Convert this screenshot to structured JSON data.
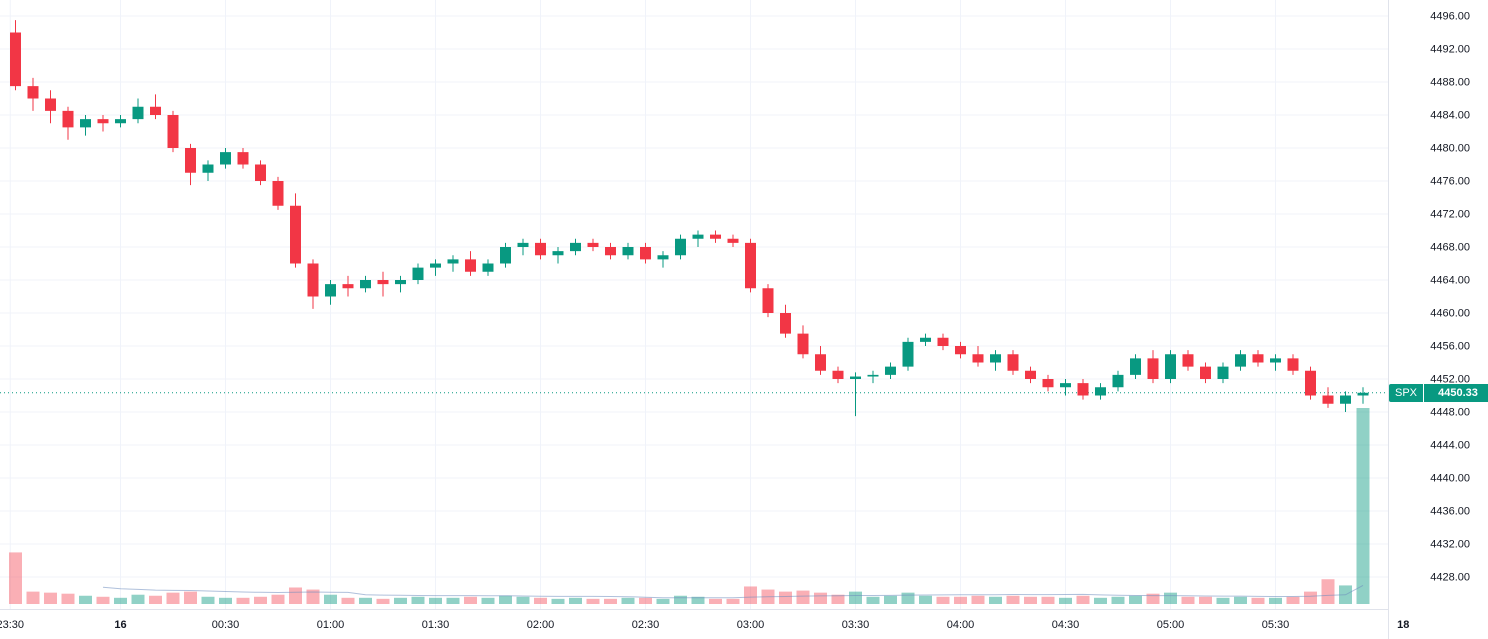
{
  "symbol": "SPX",
  "last_price": "4450.33",
  "badge": {
    "symbol": "SPX",
    "price": "4450.33"
  },
  "colors": {
    "up": "#089981",
    "down": "#f23645",
    "volume_up": "rgba(8,153,129,0.45)",
    "volume_down": "rgba(242,54,69,0.40)",
    "grid": "#f0f3fa",
    "axis_text": "#131722",
    "axis_border": "#e0e3eb",
    "price_line": "#089981",
    "volume_ma": "rgba(110,140,190,0.55)",
    "badge_bg": "#089981",
    "badge_text": "#ffffff",
    "background": "#ffffff"
  },
  "chart_data": {
    "type": "candlestick",
    "symbol": "SPX",
    "interval": "5m",
    "start_time": "23:30",
    "last_close": 4450.33,
    "ylim": [
      4428,
      4496
    ],
    "grid": true,
    "legend_position": "none",
    "price_axis_ticks": [
      "4496.00",
      "4492.00",
      "4488.00",
      "4484.00",
      "4480.00",
      "4476.00",
      "4472.00",
      "4468.00",
      "4464.00",
      "4460.00",
      "4456.00",
      "4452.00",
      "4448.00",
      "4444.00",
      "4440.00",
      "4436.00",
      "4432.00",
      "4428.00"
    ],
    "time_axis_ticks": [
      {
        "i": -0.3,
        "label": "23:30",
        "bold": false
      },
      {
        "i": 6,
        "label": "16",
        "bold": true
      },
      {
        "i": 12,
        "label": "00:30",
        "bold": false
      },
      {
        "i": 18,
        "label": "01:00",
        "bold": false
      },
      {
        "i": 24,
        "label": "01:30",
        "bold": false
      },
      {
        "i": 30,
        "label": "02:00",
        "bold": false
      },
      {
        "i": 36,
        "label": "02:30",
        "bold": false
      },
      {
        "i": 42,
        "label": "03:00",
        "bold": false
      },
      {
        "i": 48,
        "label": "03:30",
        "bold": false
      },
      {
        "i": 54,
        "label": "04:00",
        "bold": false
      },
      {
        "i": 60,
        "label": "04:30",
        "bold": false
      },
      {
        "i": 66,
        "label": "05:00",
        "bold": false
      },
      {
        "i": 72,
        "label": "05:30",
        "bold": false
      },
      {
        "i": 79.3,
        "label": "18",
        "bold": true
      }
    ],
    "volume_scale_max": 950,
    "candles_format": [
      "open",
      "high",
      "low",
      "close",
      "volume"
    ],
    "candles": [
      [
        4494.0,
        4495.5,
        4487.0,
        4487.5,
        250
      ],
      [
        4487.5,
        4488.5,
        4484.5,
        4486.0,
        60
      ],
      [
        4486.0,
        4487.0,
        4483.0,
        4484.5,
        55
      ],
      [
        4484.5,
        4485.0,
        4481.0,
        4482.5,
        50
      ],
      [
        4482.5,
        4484.0,
        4481.5,
        4483.5,
        40
      ],
      [
        4483.5,
        4484.0,
        4482.0,
        4483.0,
        35
      ],
      [
        4483.0,
        4484.0,
        4482.5,
        4483.5,
        30
      ],
      [
        4483.5,
        4486.0,
        4483.0,
        4485.0,
        45
      ],
      [
        4485.0,
        4486.5,
        4483.5,
        4484.0,
        40
      ],
      [
        4484.0,
        4484.5,
        4479.5,
        4480.0,
        55
      ],
      [
        4480.0,
        4480.5,
        4475.5,
        4477.0,
        60
      ],
      [
        4477.0,
        4478.5,
        4476.0,
        4478.0,
        35
      ],
      [
        4478.0,
        4480.0,
        4477.5,
        4479.5,
        30
      ],
      [
        4479.5,
        4480.0,
        4477.5,
        4478.0,
        30
      ],
      [
        4478.0,
        4478.5,
        4475.5,
        4476.0,
        35
      ],
      [
        4476.0,
        4476.5,
        4472.5,
        4473.0,
        45
      ],
      [
        4473.0,
        4474.5,
        4465.5,
        4466.0,
        80
      ],
      [
        4466.0,
        4466.5,
        4460.5,
        4462.0,
        70
      ],
      [
        4462.0,
        4464.0,
        4461.0,
        4463.5,
        45
      ],
      [
        4463.5,
        4464.5,
        4462.0,
        4463.0,
        30
      ],
      [
        4463.0,
        4464.5,
        4462.5,
        4464.0,
        30
      ],
      [
        4464.0,
        4465.0,
        4462.0,
        4463.5,
        25
      ],
      [
        4463.5,
        4464.5,
        4462.5,
        4464.0,
        30
      ],
      [
        4464.0,
        4466.0,
        4463.5,
        4465.5,
        35
      ],
      [
        4465.5,
        4466.5,
        4464.5,
        4466.0,
        30
      ],
      [
        4466.0,
        4467.0,
        4465.0,
        4466.5,
        30
      ],
      [
        4466.5,
        4467.5,
        4464.5,
        4465.0,
        35
      ],
      [
        4465.0,
        4466.5,
        4464.5,
        4466.0,
        30
      ],
      [
        4466.0,
        4468.5,
        4465.5,
        4468.0,
        40
      ],
      [
        4468.0,
        4469.0,
        4467.0,
        4468.5,
        35
      ],
      [
        4468.5,
        4469.0,
        4466.5,
        4467.0,
        30
      ],
      [
        4467.0,
        4468.0,
        4466.0,
        4467.5,
        25
      ],
      [
        4467.5,
        4469.0,
        4467.0,
        4468.5,
        30
      ],
      [
        4468.5,
        4469.0,
        4467.5,
        4468.0,
        25
      ],
      [
        4468.0,
        4468.5,
        4466.5,
        4467.0,
        25
      ],
      [
        4467.0,
        4468.5,
        4466.5,
        4468.0,
        30
      ],
      [
        4468.0,
        4468.5,
        4466.0,
        4466.5,
        30
      ],
      [
        4466.5,
        4467.5,
        4465.5,
        4467.0,
        25
      ],
      [
        4467.0,
        4469.5,
        4466.5,
        4469.0,
        40
      ],
      [
        4469.0,
        4470.0,
        4468.0,
        4469.5,
        35
      ],
      [
        4469.5,
        4470.0,
        4468.5,
        4469.0,
        25
      ],
      [
        4469.0,
        4469.5,
        4468.0,
        4468.5,
        25
      ],
      [
        4468.5,
        4469.0,
        4462.5,
        4463.0,
        85
      ],
      [
        4463.0,
        4463.5,
        4459.5,
        4460.0,
        70
      ],
      [
        4460.0,
        4461.0,
        4457.0,
        4457.5,
        60
      ],
      [
        4457.5,
        4458.5,
        4454.5,
        4455.0,
        65
      ],
      [
        4455.0,
        4456.0,
        4452.5,
        4453.0,
        55
      ],
      [
        4453.0,
        4453.5,
        4451.5,
        4452.0,
        45
      ],
      [
        4452.0,
        4452.8,
        4447.5,
        4452.3,
        60
      ],
      [
        4452.3,
        4453.0,
        4451.5,
        4452.5,
        35
      ],
      [
        4452.5,
        4454.0,
        4452.0,
        4453.5,
        40
      ],
      [
        4453.5,
        4457.0,
        4453.0,
        4456.5,
        55
      ],
      [
        4456.5,
        4457.5,
        4456.0,
        4457.0,
        40
      ],
      [
        4457.0,
        4457.5,
        4455.5,
        4456.0,
        35
      ],
      [
        4456.0,
        4456.5,
        4454.5,
        4455.0,
        35
      ],
      [
        4455.0,
        4456.0,
        4453.5,
        4454.0,
        40
      ],
      [
        4454.0,
        4455.5,
        4453.0,
        4455.0,
        35
      ],
      [
        4455.0,
        4455.5,
        4452.5,
        4453.0,
        40
      ],
      [
        4453.0,
        4453.5,
        4451.5,
        4452.0,
        35
      ],
      [
        4452.0,
        4452.5,
        4450.5,
        4451.0,
        35
      ],
      [
        4451.0,
        4452.0,
        4450.0,
        4451.5,
        30
      ],
      [
        4451.5,
        4452.0,
        4449.5,
        4450.0,
        40
      ],
      [
        4450.0,
        4451.5,
        4449.5,
        4451.0,
        30
      ],
      [
        4451.0,
        4453.0,
        4450.5,
        4452.5,
        35
      ],
      [
        4452.5,
        4455.0,
        4452.0,
        4454.5,
        40
      ],
      [
        4454.5,
        4455.5,
        4451.5,
        4452.0,
        50
      ],
      [
        4452.0,
        4455.5,
        4451.5,
        4455.0,
        55
      ],
      [
        4455.0,
        4455.5,
        4453.0,
        4453.5,
        35
      ],
      [
        4453.5,
        4454.0,
        4451.5,
        4452.0,
        35
      ],
      [
        4452.0,
        4454.0,
        4451.5,
        4453.5,
        30
      ],
      [
        4453.5,
        4455.5,
        4453.0,
        4455.0,
        35
      ],
      [
        4455.0,
        4455.5,
        4453.5,
        4454.0,
        30
      ],
      [
        4454.0,
        4455.0,
        4453.0,
        4454.5,
        30
      ],
      [
        4454.5,
        4455.0,
        4452.5,
        4453.0,
        35
      ],
      [
        4453.0,
        4453.5,
        4449.5,
        4450.0,
        60
      ],
      [
        4450.0,
        4451.0,
        4448.5,
        4449.0,
        120
      ],
      [
        4449.0,
        4450.5,
        4448.0,
        4450.0,
        90
      ],
      [
        4450.0,
        4451.0,
        4449.0,
        4450.33,
        950
      ]
    ]
  }
}
